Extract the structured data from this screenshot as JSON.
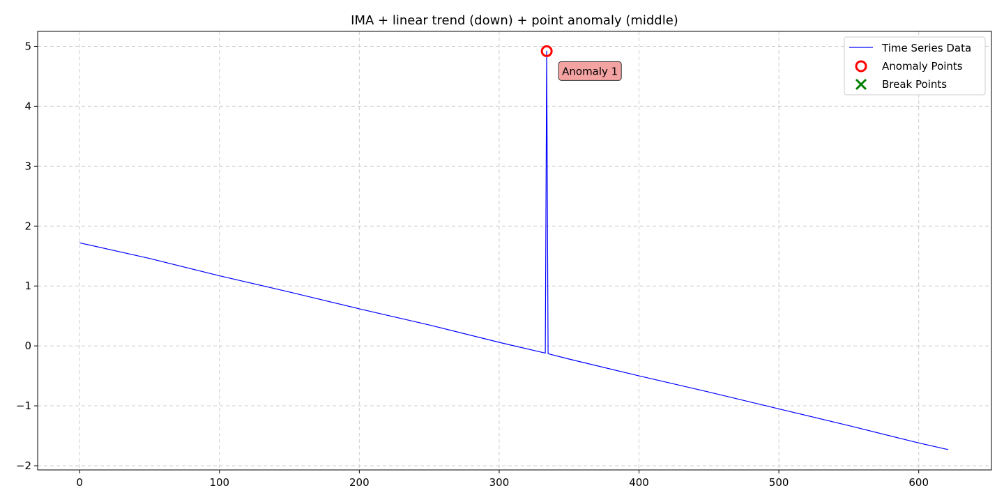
{
  "chart_data": {
    "type": "line",
    "title": "IMA + linear trend (down) + point anomaly (middle)",
    "xlabel": "",
    "ylabel": "",
    "xlim": [
      -30,
      652
    ],
    "ylim": [
      -2.07,
      5.25
    ],
    "xticks": [
      0,
      100,
      200,
      300,
      400,
      500,
      600
    ],
    "yticks": [
      -2,
      -1,
      0,
      1,
      2,
      3,
      4,
      5
    ],
    "ytick_labels": [
      "−2",
      "−1",
      "0",
      "1",
      "2",
      "3",
      "4",
      "5"
    ],
    "grid": true,
    "legend_position": "top-right",
    "series": [
      {
        "name": "Time Series Data",
        "color": "#0000ff",
        "x": [
          0,
          50,
          100,
          150,
          200,
          250,
          300,
          333,
          334,
          335,
          350,
          400,
          450,
          500,
          550,
          600,
          621
        ],
        "y": [
          1.72,
          1.46,
          1.17,
          0.9,
          0.62,
          0.35,
          0.06,
          -0.12,
          4.92,
          -0.13,
          -0.22,
          -0.5,
          -0.77,
          -1.05,
          -1.33,
          -1.62,
          -1.73
        ]
      }
    ],
    "anomaly_points": {
      "name": "Anomaly Points",
      "color": "#ff0000",
      "points": [
        {
          "x": 334,
          "y": 4.92
        }
      ]
    },
    "break_points": {
      "name": "Break Points",
      "color": "#008000",
      "points": []
    },
    "annotations": [
      {
        "text": "Anomaly 1",
        "x": 334,
        "y": 4.92,
        "bg_color": "#f4a3a3"
      }
    ]
  }
}
